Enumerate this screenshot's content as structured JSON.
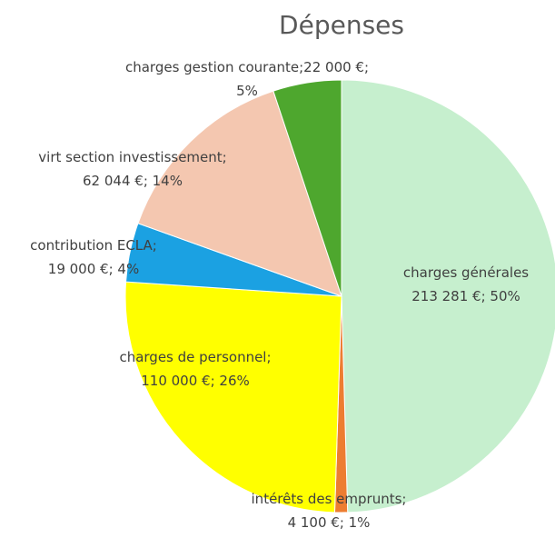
{
  "chart_data": {
    "type": "pie",
    "title": "Dépenses",
    "start_angle_deg": 0,
    "direction": "clockwise",
    "slices": [
      {
        "name": "charges générales",
        "value": 213281,
        "percent": 50,
        "color": "#C6EFCE",
        "label_lines": [
          "charges générales",
          "213 281 €; 50%"
        ]
      },
      {
        "name": "intérêts des emprunts",
        "value": 4100,
        "percent": 1,
        "color": "#ED7D31",
        "label_lines": [
          "intérêts des emprunts;",
          "4 100 €; 1%"
        ]
      },
      {
        "name": "charges de personnel",
        "value": 110000,
        "percent": 26,
        "color": "#FFFF00",
        "label_lines": [
          "charges de personnel;",
          "110 000 €; 26%"
        ]
      },
      {
        "name": "contribution ECLA",
        "value": 19000,
        "percent": 4,
        "color": "#1BA1E2",
        "label_lines": [
          "contribution ECLA;",
          "19 000 €; 4%"
        ]
      },
      {
        "name": "virt section investissement",
        "value": 62044,
        "percent": 14,
        "color": "#F4C7B0",
        "label_lines": [
          "virt section investissement;",
          "62 044 €; 14%"
        ]
      },
      {
        "name": "charges gestion courante",
        "value": 22000,
        "percent": 5,
        "color": "#4EA72E",
        "label_lines": [
          "charges gestion courante;22 000 €;",
          "5%"
        ]
      }
    ]
  }
}
